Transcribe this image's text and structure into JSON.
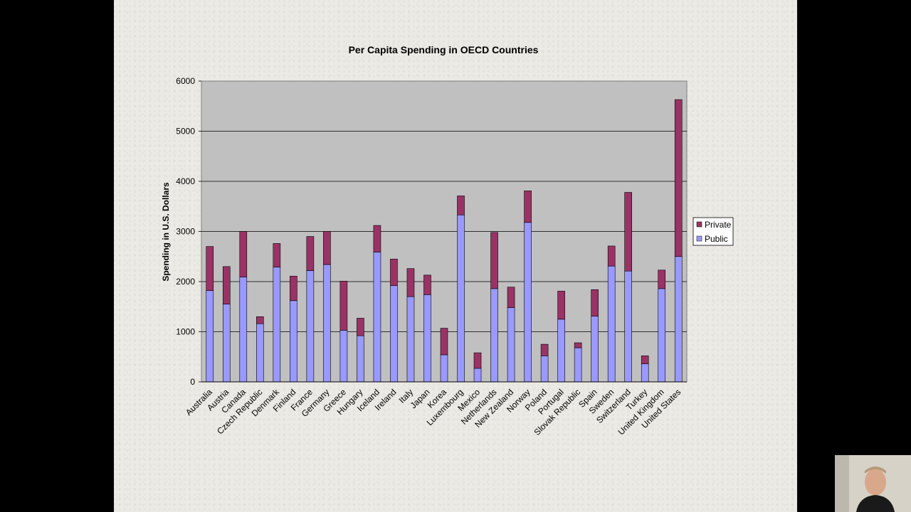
{
  "chart_data": {
    "type": "bar",
    "stacked": true,
    "title": "Per Capita Spending in OECD Countries",
    "xlabel": "",
    "ylabel": "Spending in U.S. Dollars",
    "ylim": [
      0,
      6000
    ],
    "yticks": [
      0,
      1000,
      2000,
      3000,
      4000,
      5000,
      6000
    ],
    "grid": true,
    "legend_position": "right",
    "categories": [
      "Australia",
      "Austria",
      "Canada",
      "Czech Republic",
      "Denmark",
      "Finland",
      "France",
      "Germany",
      "Greece",
      "Hungary",
      "Iceland",
      "Ireland",
      "Italy",
      "Japan",
      "Korea",
      "Luxembourg",
      "Mexico",
      "Netherlands",
      "New Zealand",
      "Norway",
      "Poland",
      "Portugal",
      "Slovak Republic",
      "Spain",
      "Sweden",
      "Switzerland",
      "Turkey",
      "United Kingdom",
      "United States"
    ],
    "series": [
      {
        "name": "Public",
        "color": "#9999ff",
        "values": [
          1820,
          1550,
          2090,
          1160,
          2290,
          1620,
          2220,
          2340,
          1030,
          920,
          2590,
          1920,
          1700,
          1740,
          540,
          3330,
          270,
          1860,
          1480,
          3180,
          520,
          1250,
          680,
          1310,
          2310,
          2210,
          360,
          1860,
          2500
        ]
      },
      {
        "name": "Private",
        "color": "#993366",
        "values": [
          880,
          750,
          910,
          140,
          470,
          490,
          680,
          660,
          980,
          350,
          530,
          530,
          560,
          390,
          530,
          380,
          310,
          1120,
          410,
          630,
          230,
          560,
          100,
          530,
          400,
          1570,
          160,
          370,
          3130
        ]
      }
    ],
    "legend": [
      "Private",
      "Public"
    ]
  },
  "colors": {
    "plot_background": "#c0c0c0",
    "public": "#9999ff",
    "private": "#993366"
  }
}
